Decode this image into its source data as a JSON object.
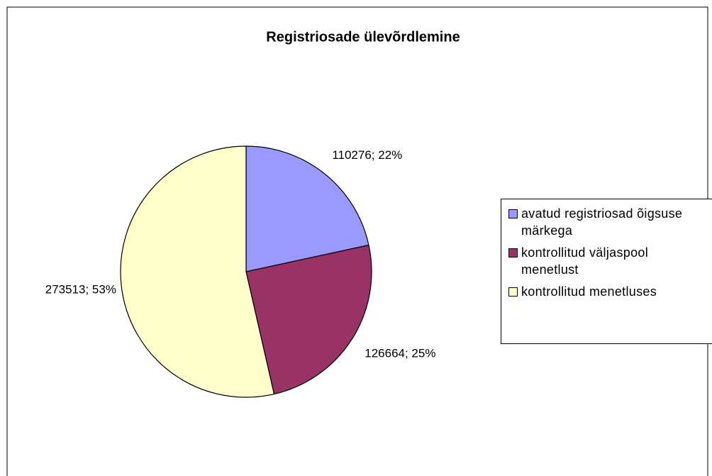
{
  "chart_data": {
    "type": "pie",
    "title": "Registriosade ülevõrdlemine",
    "categories": [
      "avatud registriosad õigsuse märkega",
      "kontrollitud väljaspool menetlust",
      "kontrollitud menetluses"
    ],
    "values": [
      110276,
      126664,
      273513
    ],
    "value_labels": [
      "110276; 22%",
      "126664; 25%",
      "273513; 53%"
    ],
    "colors": [
      "#9999ff",
      "#993366",
      "#ffffcc"
    ],
    "legend": "right"
  }
}
